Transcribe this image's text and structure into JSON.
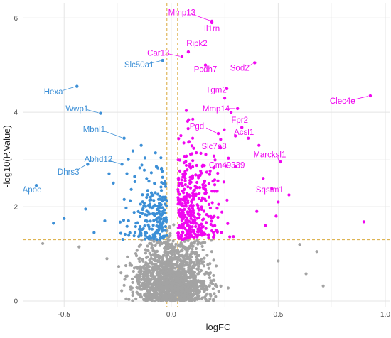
{
  "chart_data": {
    "type": "scatter",
    "title": "",
    "xlabel": "logFC",
    "ylabel": "-log10(P.Value)",
    "xlim": [
      -0.69,
      1.02
    ],
    "ylim": [
      -0.12,
      6.32
    ],
    "x_ticks": [
      -0.5,
      0.0,
      0.5,
      1.0
    ],
    "x_tick_labels": [
      "-0.5",
      "0.0",
      "0.5",
      "1.0"
    ],
    "y_ticks": [
      0,
      2,
      4,
      6
    ],
    "y_tick_labels": [
      "0",
      "2",
      "4",
      "6"
    ],
    "grid": true,
    "legend": "none",
    "thresholds": {
      "logfc_low": -0.02,
      "logfc_high": 0.03,
      "neg_log10_p": 1.3,
      "color": "#d9a93b"
    },
    "colors": {
      "down": "#3c8fd6",
      "up": "#f007f0",
      "ns": "#a3a3a3"
    },
    "labeled_points": [
      {
        "label": "Mmp13",
        "x": 0.19,
        "y": 5.93,
        "group": "up",
        "lx": 0.05,
        "ly": 6.06
      },
      {
        "label": "Il1rn",
        "x": 0.19,
        "y": 5.9,
        "group": "up",
        "lx": 0.19,
        "ly": 5.72
      },
      {
        "label": "Ripk2",
        "x": 0.08,
        "y": 5.28,
        "group": "up",
        "lx": 0.12,
        "ly": 5.4
      },
      {
        "label": "Car13",
        "x": 0.05,
        "y": 5.18,
        "group": "up",
        "lx": -0.06,
        "ly": 5.2
      },
      {
        "label": "Slc50a1",
        "x": -0.04,
        "y": 5.1,
        "group": "down",
        "lx": -0.15,
        "ly": 4.95
      },
      {
        "label": "Pcdh7",
        "x": 0.16,
        "y": 5.0,
        "group": "up",
        "lx": 0.16,
        "ly": 4.85
      },
      {
        "label": "Sod2",
        "x": 0.39,
        "y": 5.05,
        "group": "up",
        "lx": 0.32,
        "ly": 4.88
      },
      {
        "label": "Hexa",
        "x": -0.44,
        "y": 4.55,
        "group": "down",
        "lx": -0.55,
        "ly": 4.38
      },
      {
        "label": "Tgm2",
        "x": 0.26,
        "y": 4.5,
        "group": "up",
        "lx": 0.21,
        "ly": 4.42
      },
      {
        "label": "Clec4e",
        "x": 0.93,
        "y": 4.35,
        "group": "up",
        "lx": 0.8,
        "ly": 4.18
      },
      {
        "label": "Wwp1",
        "x": -0.33,
        "y": 3.98,
        "group": "down",
        "lx": -0.44,
        "ly": 4.02
      },
      {
        "label": "Mmp14",
        "x": 0.31,
        "y": 4.08,
        "group": "up",
        "lx": 0.21,
        "ly": 4.02
      },
      {
        "label": "Fpr2",
        "x": 0.33,
        "y": 3.68,
        "group": "up",
        "lx": 0.32,
        "ly": 3.78
      },
      {
        "label": "Pgd",
        "x": 0.22,
        "y": 3.55,
        "group": "up",
        "lx": 0.12,
        "ly": 3.65
      },
      {
        "label": "Acsl1",
        "x": 0.3,
        "y": 3.5,
        "group": "up",
        "lx": 0.34,
        "ly": 3.52
      },
      {
        "label": "Mbnl1",
        "x": -0.22,
        "y": 3.45,
        "group": "down",
        "lx": -0.36,
        "ly": 3.58
      },
      {
        "label": "Slc7a8",
        "x": 0.23,
        "y": 3.25,
        "group": "up",
        "lx": 0.2,
        "ly": 3.22
      },
      {
        "label": "Abhd12",
        "x": -0.23,
        "y": 2.9,
        "group": "down",
        "lx": -0.34,
        "ly": 2.95
      },
      {
        "label": "Marcksl1",
        "x": 0.51,
        "y": 2.95,
        "group": "up",
        "lx": 0.46,
        "ly": 3.05
      },
      {
        "label": "Gm49339",
        "x": 0.3,
        "y": 2.85,
        "group": "up",
        "lx": 0.26,
        "ly": 2.82
      },
      {
        "label": "Dhrs3",
        "x": -0.39,
        "y": 2.9,
        "group": "down",
        "lx": -0.48,
        "ly": 2.68
      },
      {
        "label": "Sqstm1",
        "x": 0.47,
        "y": 2.38,
        "group": "up",
        "lx": 0.46,
        "ly": 2.3
      },
      {
        "label": "Apoe",
        "x": -0.63,
        "y": 2.45,
        "group": "down",
        "lx": -0.65,
        "ly": 2.3
      }
    ],
    "series": [
      {
        "group": "ns",
        "generated": {
          "count": 1500,
          "seed": 11,
          "extra": [
            [
              -0.6,
              1.22
            ],
            [
              0.6,
              1.2
            ],
            [
              0.68,
              1.05
            ],
            [
              0.63,
              0.58
            ],
            [
              0.71,
              0.32
            ],
            [
              -0.43,
              1.15
            ],
            [
              0.5,
              0.85
            ],
            [
              -0.3,
              0.9
            ]
          ]
        }
      },
      {
        "group": "down",
        "generated": {
          "count": 210,
          "seed": 23,
          "extra": [
            [
              -0.4,
              1.95
            ],
            [
              -0.36,
              1.45
            ],
            [
              -0.31,
              1.7
            ],
            [
              -0.5,
              1.75
            ],
            [
              -0.55,
              1.65
            ],
            [
              -0.29,
              2.7
            ],
            [
              -0.27,
              2.5
            ],
            [
              -0.2,
              3.0
            ],
            [
              -0.14,
              3.3
            ]
          ]
        }
      },
      {
        "group": "up",
        "generated": {
          "count": 360,
          "seed": 37,
          "extra": [
            [
              0.9,
              1.68
            ],
            [
              0.49,
              1.8
            ],
            [
              0.44,
              1.6
            ],
            [
              0.5,
              2.1
            ],
            [
              0.55,
              2.25
            ],
            [
              0.41,
              3.3
            ],
            [
              0.36,
              3.45
            ],
            [
              0.4,
              1.9
            ],
            [
              0.43,
              2.6
            ],
            [
              0.28,
              4.0
            ],
            [
              0.25,
              4.3
            ]
          ]
        }
      }
    ]
  }
}
